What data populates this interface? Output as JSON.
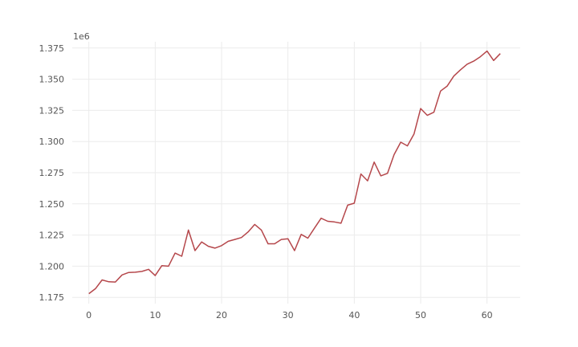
{
  "chart_data": {
    "type": "line",
    "title": "",
    "xlabel": "",
    "ylabel": "",
    "y_offset_label": "1e6",
    "grid": true,
    "xlim": [
      -2.5,
      65
    ],
    "ylim": [
      1170000,
      1380000
    ],
    "xticks": [
      0,
      10,
      20,
      30,
      40,
      50,
      60
    ],
    "yticks": [
      1175000,
      1200000,
      1225000,
      1250000,
      1275000,
      1300000,
      1325000,
      1350000,
      1375000
    ],
    "ytick_labels": [
      "1.175",
      "1.200",
      "1.225",
      "1.250",
      "1.275",
      "1.300",
      "1.325",
      "1.350",
      "1.375"
    ],
    "series": [
      {
        "color": "#b5474b",
        "x": [
          0,
          1,
          2,
          3,
          4,
          5,
          6,
          7,
          8,
          9,
          10,
          11,
          12,
          13,
          14,
          15,
          16,
          17,
          18,
          19,
          20,
          21,
          22,
          23,
          24,
          25,
          26,
          27,
          28,
          29,
          30,
          31,
          32,
          33,
          34,
          35,
          36,
          37,
          38,
          39,
          40,
          41,
          42,
          43,
          44,
          45,
          46,
          47,
          48,
          49,
          50,
          51,
          52,
          53,
          54,
          55,
          56,
          57,
          58,
          59,
          60,
          61,
          62
        ],
        "y": [
          1178000,
          1182000,
          1189000,
          1187500,
          1187300,
          1193000,
          1195000,
          1195200,
          1195800,
          1197500,
          1192500,
          1200500,
          1200000,
          1210500,
          1208000,
          1229000,
          1212500,
          1219500,
          1216000,
          1214500,
          1216500,
          1220000,
          1221500,
          1223000,
          1227500,
          1233500,
          1229000,
          1218000,
          1218000,
          1221500,
          1222000,
          1212500,
          1225500,
          1222500,
          1230500,
          1238500,
          1236000,
          1235500,
          1234500,
          1249000,
          1250500,
          1274000,
          1268500,
          1283500,
          1272500,
          1274500,
          1289500,
          1299500,
          1296500,
          1306000,
          1326500,
          1321000,
          1323500,
          1340500,
          1344500,
          1352500,
          1357500,
          1362000,
          1364500,
          1368000,
          1372500,
          1365000,
          1370500
        ]
      }
    ]
  }
}
